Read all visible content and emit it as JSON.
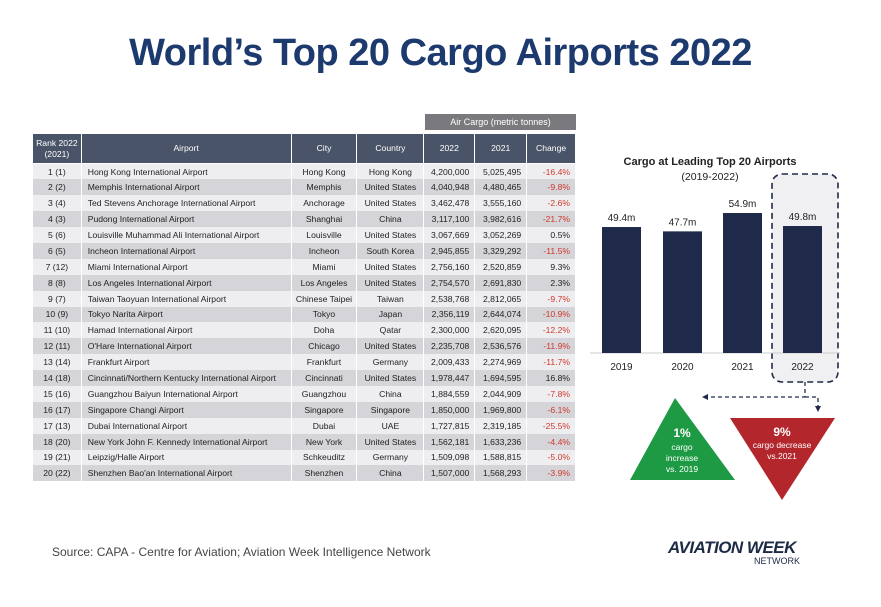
{
  "title": "World’s Top 20 Cargo Airports 2022",
  "table": {
    "group_header": "Air Cargo (metric tonnes)",
    "columns": [
      "Rank 2022 (2021)",
      "Airport",
      "City",
      "Country",
      "2022",
      "2021",
      "Change"
    ],
    "rows": [
      [
        "1 (1)",
        "Hong Kong International Airport",
        "Hong Kong",
        "Hong Kong",
        "4,200,000",
        "5,025,495",
        "-16.4%"
      ],
      [
        "2 (2)",
        "Memphis International Airport",
        "Memphis",
        "United States",
        "4,040,948",
        "4,480,465",
        "-9.8%"
      ],
      [
        "3 (4)",
        "Ted Stevens Anchorage International Airport",
        "Anchorage",
        "United States",
        "3,462,478",
        "3,555,160",
        "-2.6%"
      ],
      [
        "4 (3)",
        "Pudong International Airport",
        "Shanghai",
        "China",
        "3,117,100",
        "3,982,616",
        "-21.7%"
      ],
      [
        "5 (6)",
        "Louisville Muhammad Ali International Airport",
        "Louisville",
        "United States",
        "3,067,669",
        "3,052,269",
        "0.5%"
      ],
      [
        "6 (5)",
        "Incheon International Airport",
        "Incheon",
        "South Korea",
        "2,945,855",
        "3,329,292",
        "-11.5%"
      ],
      [
        "7 (12)",
        "Miami International Airport",
        "Miami",
        "United States",
        "2,756,160",
        "2,520,859",
        "9.3%"
      ],
      [
        "8 (8)",
        "Los Angeles International Airport",
        "Los Angeles",
        "United States",
        "2,754,570",
        "2,691,830",
        "2.3%"
      ],
      [
        "9 (7)",
        "Taiwan Taoyuan International Airport",
        "Chinese Taipei",
        "Taiwan",
        "2,538,768",
        "2,812,065",
        "-9.7%"
      ],
      [
        "10 (9)",
        "Tokyo Narita Airport",
        "Tokyo",
        "Japan",
        "2,356,119",
        "2,644,074",
        "-10.9%"
      ],
      [
        "11 (10)",
        "Hamad International Airport",
        "Doha",
        "Qatar",
        "2,300,000",
        "2,620,095",
        "-12.2%"
      ],
      [
        "12 (11)",
        "O'Hare International Airport",
        "Chicago",
        "United States",
        "2,235,708",
        "2,536,576",
        "-11.9%"
      ],
      [
        "13 (14)",
        "Frankfurt Airport",
        "Frankfurt",
        "Germany",
        "2,009,433",
        "2,274,969",
        "-11.7%"
      ],
      [
        "14 (18)",
        "Cincinnati/Northern Kentucky International Airport",
        "Cincinnati",
        "United States",
        "1,978,447",
        "1,694,595",
        "16.8%"
      ],
      [
        "15 (16)",
        "Guangzhou Baiyun International Airport",
        "Guangzhou",
        "China",
        "1,884,559",
        "2,044,909",
        "-7.8%"
      ],
      [
        "16 (17)",
        "Singapore Changi Airport",
        "Singapore",
        "Singapore",
        "1,850,000",
        "1,969,800",
        "-6.1%"
      ],
      [
        "17 (13)",
        "Dubai International Airport",
        "Dubai",
        "UAE",
        "1,727,815",
        "2,319,185",
        "-25.5%"
      ],
      [
        "18 (20)",
        "New York John F. Kennedy International Airport",
        "New York",
        "United States",
        "1,562,181",
        "1,633,236",
        "-4.4%"
      ],
      [
        "19 (21)",
        "Leipzig/Halle Airport",
        "Schkeuditz",
        "Germany",
        "1,509,098",
        "1,588,815",
        "-5.0%"
      ],
      [
        "20 (22)",
        "Shenzhen Bao'an International Airport",
        "Shenzhen",
        "China",
        "1,507,000",
        "1,568,293",
        "-3.9%"
      ]
    ]
  },
  "chart_data": {
    "type": "bar",
    "title": "Cargo at Leading Top 20 Airports",
    "subtitle": "(2019-2022)",
    "categories": [
      "2019",
      "2020",
      "2021",
      "2022"
    ],
    "values": [
      49.4,
      47.7,
      54.9,
      49.8
    ],
    "labels": [
      "49.4m",
      "47.7m",
      "54.9m",
      "49.8m"
    ],
    "unit": "m",
    "highlight": "2022",
    "bar_color": "#1f2a4a",
    "annotations": [
      {
        "big": "1%",
        "lines": [
          "cargo",
          "increase",
          "vs. 2019"
        ],
        "color": "#1e9a44"
      },
      {
        "big": "9%",
        "lines": [
          "cargo decrease",
          "vs.2021"
        ],
        "color": "#b3262b"
      }
    ]
  },
  "source": "Source: CAPA - Centre for Aviation; Aviation Week Intelligence Network",
  "logo": {
    "main": "AVIATION WEEK",
    "sub": "NETWORK"
  }
}
